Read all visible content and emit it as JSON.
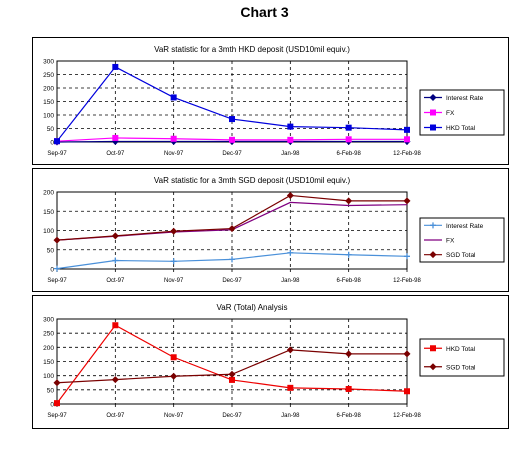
{
  "page": {
    "title": "Chart 3"
  },
  "chart_data": [
    {
      "type": "line",
      "title": "VaR statistic for a 3mth HKD deposit (USD10mil equiv.)",
      "categories": [
        "Sep-97",
        "Oct-97",
        "Nov-97",
        "Dec-97",
        "Jan-98",
        "6-Feb-98",
        "12-Feb-98"
      ],
      "ylim": [
        0,
        300
      ],
      "yticks": [
        0,
        50,
        100,
        150,
        200,
        250,
        300
      ],
      "grid": true,
      "legend_position": "right",
      "series": [
        {
          "name": "Interest Rate",
          "values": [
            0,
            2,
            2,
            2,
            2,
            2,
            2
          ],
          "color": "#000080",
          "marker": "diamond"
        },
        {
          "name": "FX",
          "values": [
            3,
            15,
            12,
            8,
            8,
            10,
            10
          ],
          "color": "#ff00ff",
          "marker": "square"
        },
        {
          "name": "HKD Total",
          "values": [
            3,
            278,
            165,
            85,
            57,
            53,
            45
          ],
          "color": "#0000dd",
          "marker": "square"
        }
      ]
    },
    {
      "type": "line",
      "title": "VaR statistic for a 3mth SGD deposit (USD10mil equiv.)",
      "categories": [
        "Sep-97",
        "Oct-97",
        "Nov-97",
        "Dec-97",
        "Jan-98",
        "6-Feb-98",
        "12-Feb-98"
      ],
      "ylim": [
        0,
        200
      ],
      "yticks": [
        0,
        50,
        100,
        150,
        200
      ],
      "grid": true,
      "legend_position": "right",
      "series": [
        {
          "name": "Interest Rate",
          "values": [
            1,
            22,
            20,
            25,
            42,
            37,
            33
          ],
          "color": "#4a90d9",
          "marker": "plus"
        },
        {
          "name": "FX",
          "values": [
            75,
            85,
            96,
            102,
            173,
            165,
            167
          ],
          "color": "#800080",
          "marker": "none"
        },
        {
          "name": "SGD Total",
          "values": [
            75,
            86,
            98,
            105,
            191,
            177,
            177
          ],
          "color": "#7a0000",
          "marker": "diamond"
        }
      ]
    },
    {
      "type": "line",
      "title": "VaR (Total) Analysis",
      "categories": [
        "Sep-97",
        "Oct-97",
        "Nov-97",
        "Dec-97",
        "Jan-98",
        "6-Feb-98",
        "12-Feb-98"
      ],
      "ylim": [
        0,
        300
      ],
      "yticks": [
        0,
        50,
        100,
        150,
        200,
        250,
        300
      ],
      "grid": true,
      "legend_position": "right",
      "series": [
        {
          "name": "HKD Total",
          "values": [
            3,
            278,
            165,
            85,
            57,
            53,
            45
          ],
          "color": "#ee0000",
          "marker": "square"
        },
        {
          "name": "SGD Total",
          "values": [
            75,
            86,
            98,
            105,
            191,
            177,
            177
          ],
          "color": "#7a0000",
          "marker": "diamond"
        }
      ]
    }
  ]
}
